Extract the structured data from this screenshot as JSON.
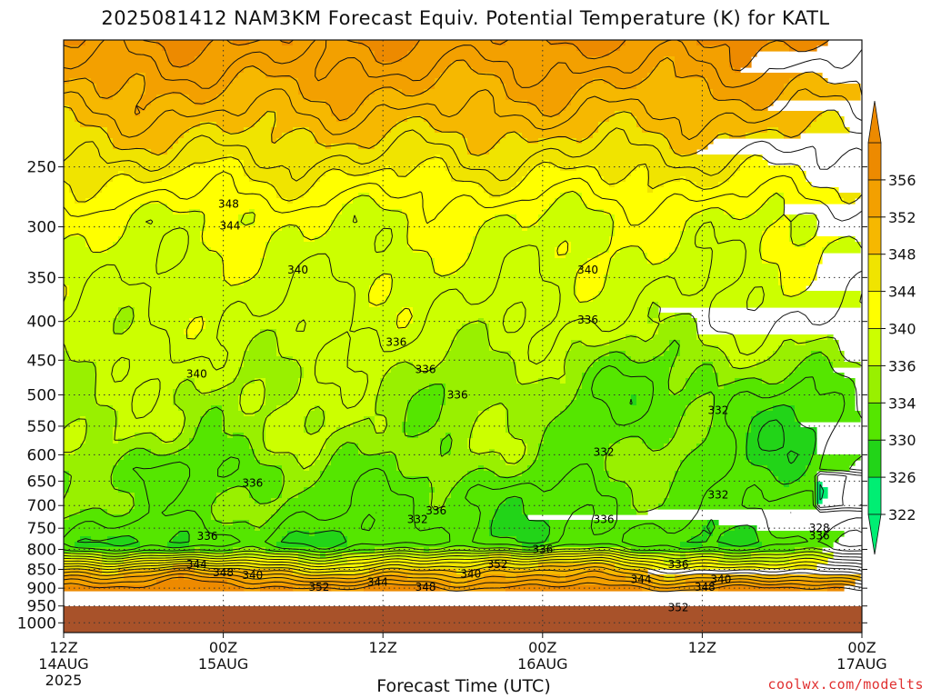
{
  "chart_data": {
    "type": "heatmap",
    "title": "2025081412 NAM3KM Forecast Equiv. Potential Temperature (K) for KATL",
    "xlabel": "Forecast Time (UTC)",
    "ylabel": "",
    "x_ticks": [
      {
        "hour": 0,
        "lines": [
          "12Z",
          "14AUG",
          "2025"
        ]
      },
      {
        "hour": 12,
        "lines": [
          "00Z",
          "15AUG"
        ]
      },
      {
        "hour": 24,
        "lines": [
          "12Z"
        ]
      },
      {
        "hour": 36,
        "lines": [
          "00Z",
          "16AUG"
        ]
      },
      {
        "hour": 48,
        "lines": [
          "12Z"
        ]
      },
      {
        "hour": 60,
        "lines": [
          "00Z",
          "17AUG"
        ]
      }
    ],
    "xlim": [
      0,
      60
    ],
    "y_scale": "log-pressure",
    "ylim": [
      1030,
      170
    ],
    "y_ticks": [
      "250",
      "300",
      "350",
      "400",
      "450",
      "500",
      "550",
      "600",
      "650",
      "700",
      "750",
      "800",
      "850",
      "900",
      "950",
      "1000"
    ],
    "grid": "dotted",
    "colorbar": {
      "levels": [
        "322",
        "326",
        "330",
        "334",
        "336",
        "340",
        "344",
        "348",
        "352",
        "356"
      ],
      "colors": [
        "#00ee73",
        "#22d418",
        "#55e600",
        "#99f000",
        "#ccff00",
        "#ffff00",
        "#f0e400",
        "#f6b800",
        "#f3a000",
        "#ed8a00"
      ]
    },
    "surface_color": "#a8522a",
    "contour_labels": [
      {
        "text": "348",
        "hour": 12.4,
        "p": 280
      },
      {
        "text": "344",
        "hour": 12.5,
        "p": 299
      },
      {
        "text": "340",
        "hour": 17.6,
        "p": 342
      },
      {
        "text": "340",
        "hour": 39.4,
        "p": 342
      },
      {
        "text": "336",
        "hour": 39.4,
        "p": 398
      },
      {
        "text": "336",
        "hour": 25.0,
        "p": 426
      },
      {
        "text": "336",
        "hour": 27.2,
        "p": 463
      },
      {
        "text": "340",
        "hour": 10.0,
        "p": 469
      },
      {
        "text": "336",
        "hour": 29.6,
        "p": 500
      },
      {
        "text": "332",
        "hour": 49.2,
        "p": 524
      },
      {
        "text": "332",
        "hour": 40.6,
        "p": 595
      },
      {
        "text": "336",
        "hour": 14.2,
        "p": 654
      },
      {
        "text": "332",
        "hour": 49.2,
        "p": 678
      },
      {
        "text": "336",
        "hour": 28.0,
        "p": 711
      },
      {
        "text": "332",
        "hour": 26.6,
        "p": 730
      },
      {
        "text": "336",
        "hour": 40.6,
        "p": 730
      },
      {
        "text": "328",
        "hour": 56.8,
        "p": 750
      },
      {
        "text": "336",
        "hour": 56.8,
        "p": 767
      },
      {
        "text": "336",
        "hour": 10.8,
        "p": 768
      },
      {
        "text": "336",
        "hour": 36.0,
        "p": 800
      },
      {
        "text": "344",
        "hour": 10.0,
        "p": 837
      },
      {
        "text": "352",
        "hour": 32.6,
        "p": 837
      },
      {
        "text": "348",
        "hour": 12.0,
        "p": 858
      },
      {
        "text": "340",
        "hour": 14.2,
        "p": 866
      },
      {
        "text": "340",
        "hour": 30.6,
        "p": 862
      },
      {
        "text": "336",
        "hour": 46.2,
        "p": 837
      },
      {
        "text": "344",
        "hour": 23.6,
        "p": 884
      },
      {
        "text": "344",
        "hour": 43.4,
        "p": 876
      },
      {
        "text": "340",
        "hour": 49.4,
        "p": 876
      },
      {
        "text": "352",
        "hour": 19.2,
        "p": 897
      },
      {
        "text": "348",
        "hour": 27.2,
        "p": 897
      },
      {
        "text": "348",
        "hour": 48.2,
        "p": 897
      },
      {
        "text": "352",
        "hour": 46.2,
        "p": 955
      }
    ]
  },
  "labels": {
    "title": "2025081412 NAM3KM Forecast Equiv. Potential Temperature (K) for KATL",
    "xlabel": "Forecast Time (UTC)",
    "credit": "coolwx.com/modelts"
  }
}
